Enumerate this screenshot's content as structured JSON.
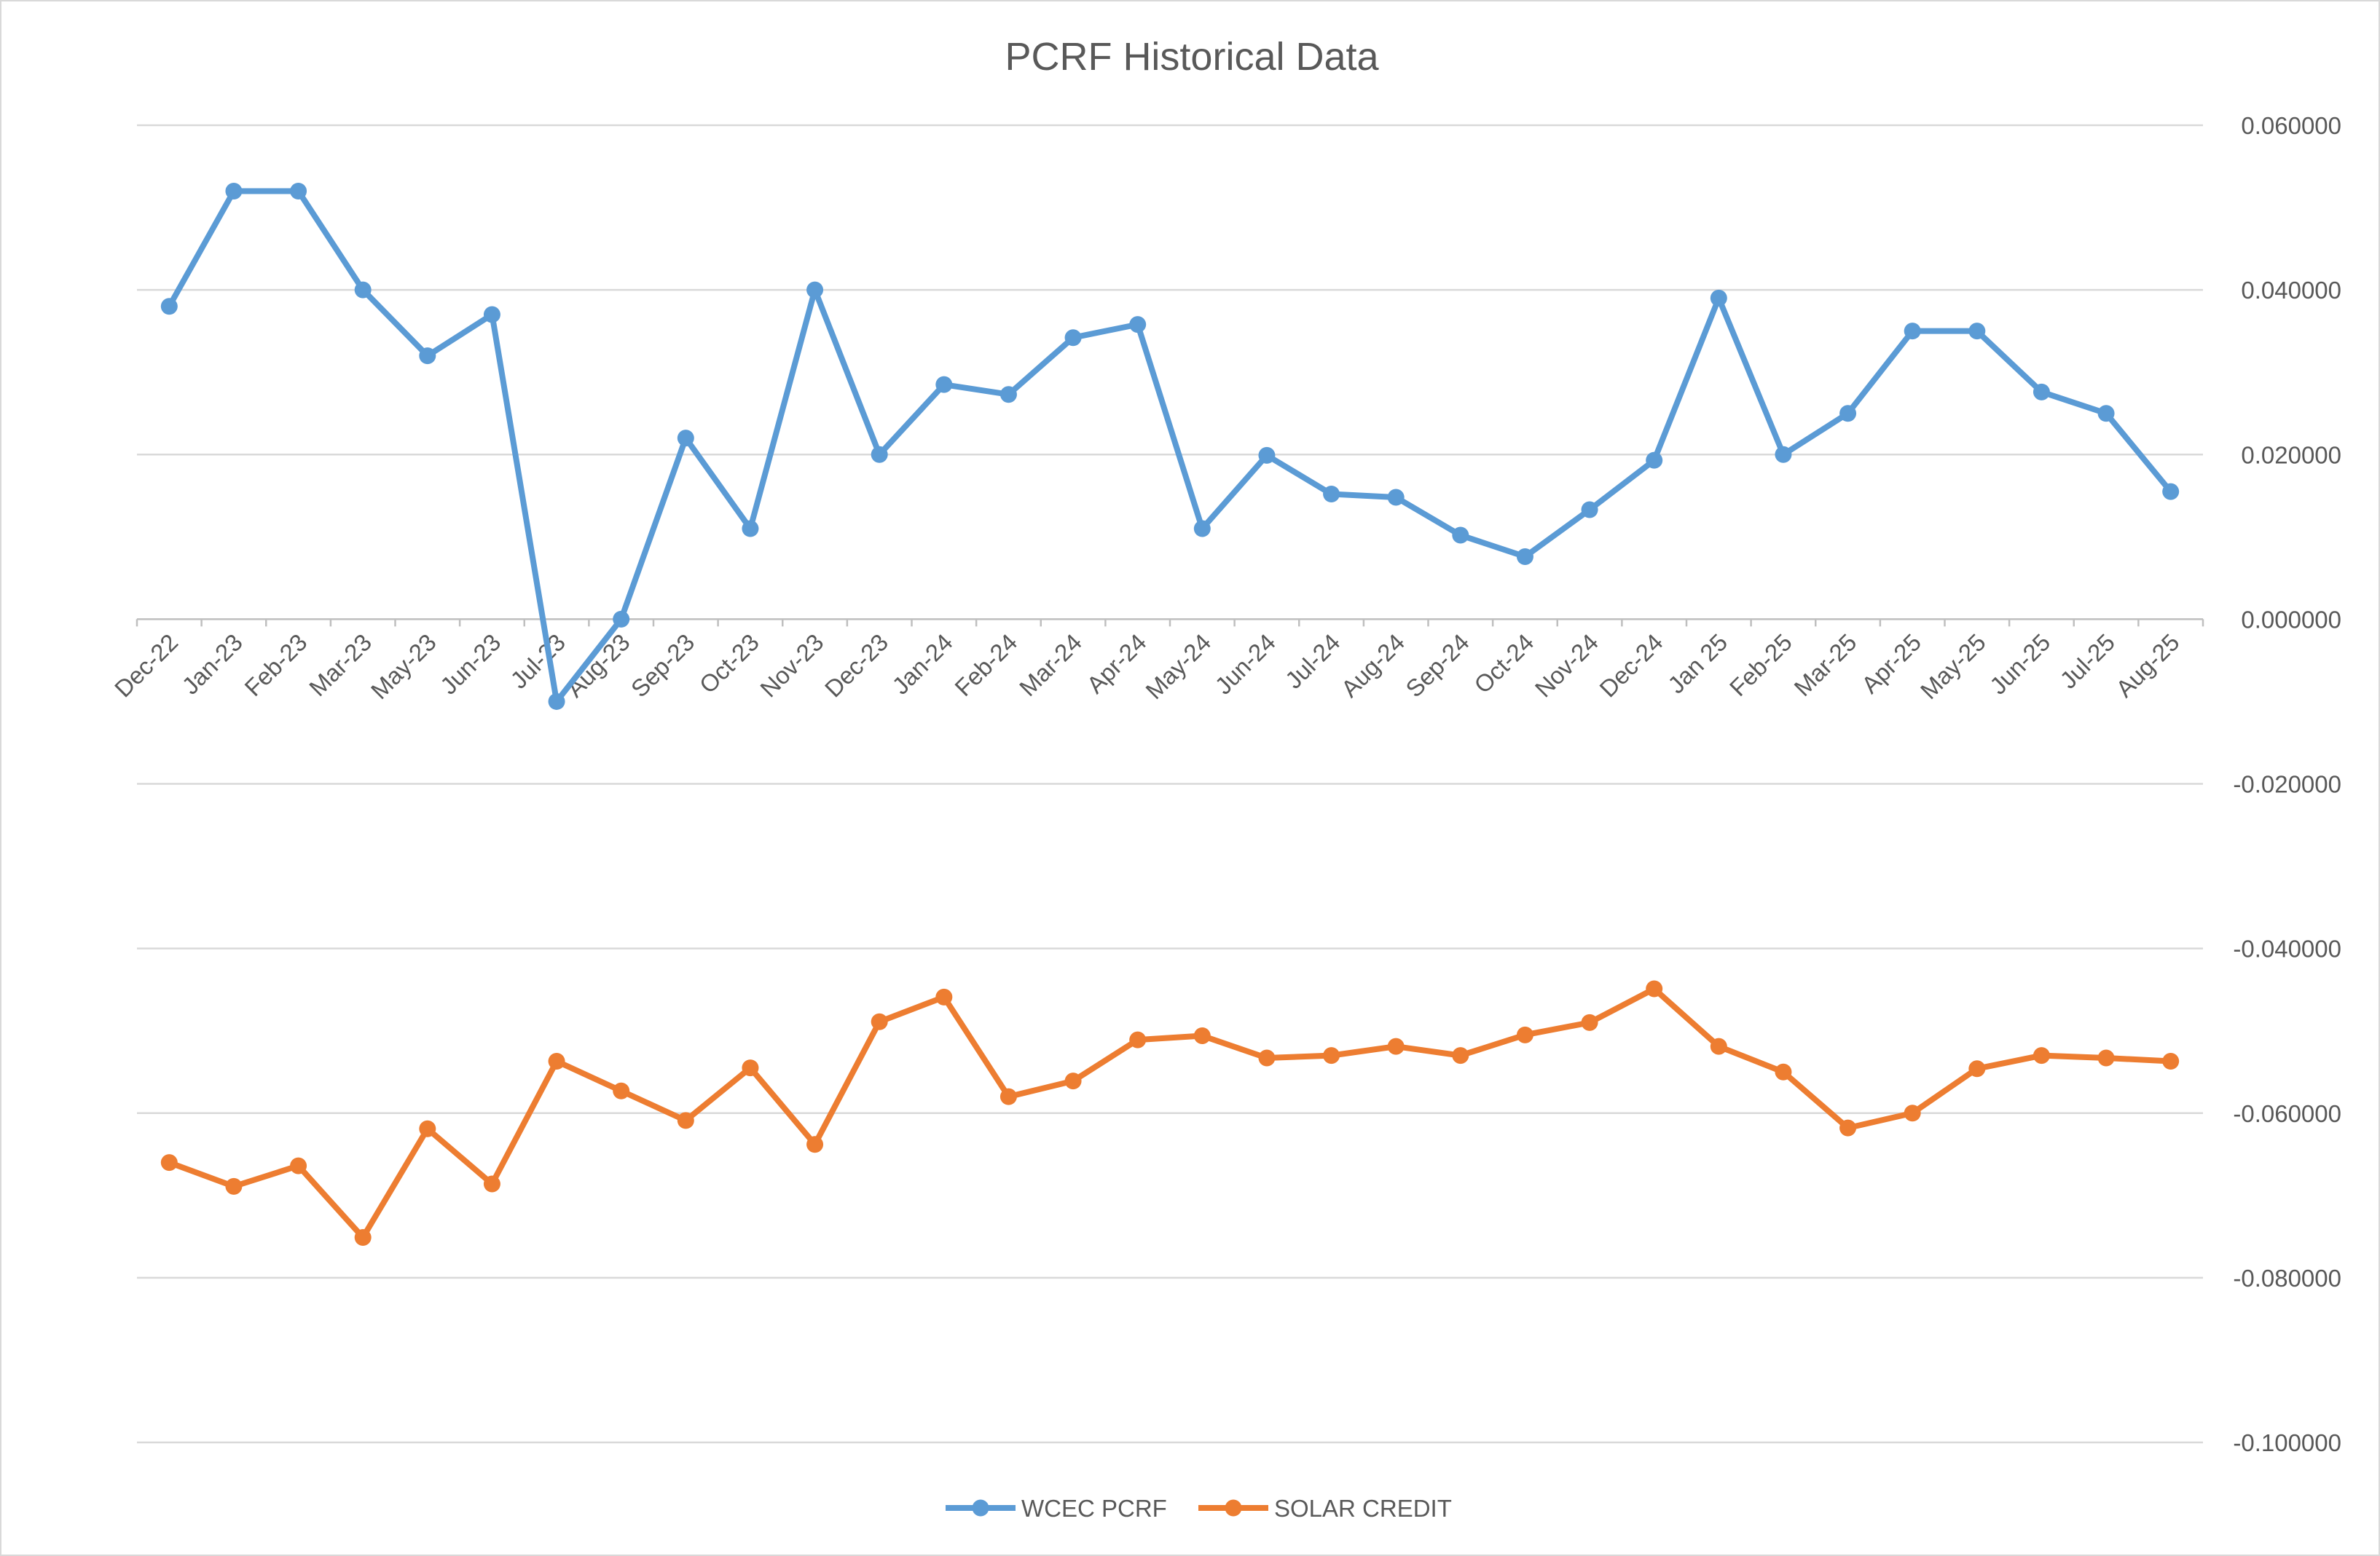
{
  "chart_data": {
    "type": "line",
    "title": "PCRF Historical Data",
    "xlabel": "",
    "ylabel": "",
    "ylim": [
      -0.1,
      0.06
    ],
    "y_ticks": [
      "0.060000",
      "0.040000",
      "0.020000",
      "0.000000",
      "-0.020000",
      "-0.040000",
      "-0.060000",
      "-0.080000",
      "-0.100000"
    ],
    "y_tick_values": [
      0.06,
      0.04,
      0.02,
      0.0,
      -0.02,
      -0.04,
      -0.06,
      -0.08,
      -0.1
    ],
    "y_axis_position": "right",
    "grid": true,
    "legend_position": "bottom",
    "categories": [
      "Dec-22",
      "Jan-23",
      "Feb-23",
      "Mar-23",
      "May-23",
      "Jun-23",
      "Jul-23",
      "Aug-23",
      "Sep-23",
      "Oct-23",
      "Nov-23",
      "Dec-23",
      "Jan-24",
      "Feb-24",
      "Mar-24",
      "Apr-24",
      "May-24",
      "Jun-24",
      "Jul-24",
      "Aug-24",
      "Sep-24",
      "Oct-24",
      "Nov-24",
      "Dec-24",
      "Jan 25",
      "Feb-25",
      "Mar-25",
      "Apr-25",
      "May-25",
      "Jun-25",
      "Jul-25",
      "Aug-25"
    ],
    "series": [
      {
        "name": "WCEC PCRF",
        "color": "#5b9bd5",
        "values": [
          0.038,
          0.052,
          0.052,
          0.04,
          0.032,
          0.037,
          -0.01,
          0.0,
          0.022,
          0.011,
          0.04,
          0.02,
          0.0285,
          0.0273,
          0.0342,
          0.0358,
          0.011,
          0.0199,
          0.0152,
          0.0148,
          0.0102,
          0.0076,
          0.0133,
          0.0193,
          0.039,
          0.02,
          0.025,
          0.035,
          0.035,
          0.0276,
          0.025,
          0.0155
        ]
      },
      {
        "name": "SOLAR CREDIT",
        "color": "#ed7d31",
        "values": [
          -0.066,
          -0.0689,
          -0.0664,
          -0.0751,
          -0.0619,
          -0.0686,
          -0.0537,
          -0.0573,
          -0.0609,
          -0.0545,
          -0.0638,
          -0.0489,
          -0.0459,
          -0.058,
          -0.0561,
          -0.0511,
          -0.0506,
          -0.0533,
          -0.053,
          -0.0519,
          -0.053,
          -0.0505,
          -0.049,
          -0.0449,
          -0.0519,
          -0.055,
          -0.0618,
          -0.06,
          -0.0546,
          -0.053,
          -0.0533,
          -0.0537
        ]
      }
    ]
  }
}
